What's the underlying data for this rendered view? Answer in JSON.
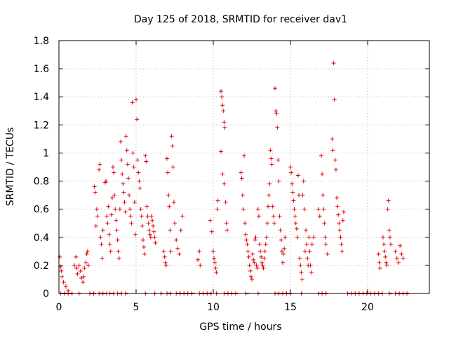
{
  "chart_data": {
    "type": "scatter",
    "title": "Day 125 of 2018, SRMTID for receiver dav1",
    "xlabel": "GPS time / hours",
    "ylabel": "SRMTID / TECUs",
    "xlim": [
      0,
      24
    ],
    "ylim": [
      0,
      1.8
    ],
    "xticks": [
      0,
      5,
      10,
      15,
      20
    ],
    "yticks": [
      0,
      0.2,
      0.4,
      0.6,
      0.8,
      1,
      1.2,
      1.4,
      1.6,
      1.8
    ],
    "xtick_labels": [
      "0",
      "5",
      "10",
      "15",
      "20"
    ],
    "ytick_labels": [
      "0",
      "0.2",
      "0.4",
      "0.6",
      "0.8",
      "1",
      "1.2",
      "1.4",
      "1.6",
      "1.8"
    ],
    "grid": true,
    "marker": "+",
    "color": "#e00000",
    "series": [
      {
        "name": "SRMTID",
        "points": [
          [
            0.05,
            0.26
          ],
          [
            0.1,
            0.19
          ],
          [
            0.15,
            0.16
          ],
          [
            0.2,
            0.12
          ],
          [
            0.3,
            0.08
          ],
          [
            0.45,
            0.05
          ],
          [
            0.6,
            0.02
          ],
          [
            1.0,
            0.2
          ],
          [
            1.1,
            0.26
          ],
          [
            1.15,
            0.18
          ],
          [
            1.2,
            0.14
          ],
          [
            1.3,
            0.2
          ],
          [
            1.4,
            0.16
          ],
          [
            1.45,
            0.11
          ],
          [
            1.55,
            0.08
          ],
          [
            1.6,
            0.12
          ],
          [
            1.65,
            0.18
          ],
          [
            1.75,
            0.22
          ],
          [
            1.8,
            0.28
          ],
          [
            1.85,
            0.3
          ],
          [
            1.9,
            0.2
          ],
          [
            2.3,
            0.76
          ],
          [
            2.35,
            0.72
          ],
          [
            2.4,
            0.48
          ],
          [
            2.45,
            0.6
          ],
          [
            2.5,
            0.55
          ],
          [
            2.6,
            0.88
          ],
          [
            2.65,
            0.92
          ],
          [
            2.7,
            0.4
          ],
          [
            2.75,
            0.35
          ],
          [
            2.8,
            0.25
          ],
          [
            2.85,
            0.45
          ],
          [
            3.0,
            0.79
          ],
          [
            3.05,
            0.8
          ],
          [
            3.1,
            0.55
          ],
          [
            3.15,
            0.5
          ],
          [
            3.2,
            0.62
          ],
          [
            3.25,
            0.42
          ],
          [
            3.3,
            0.35
          ],
          [
            3.35,
            0.3
          ],
          [
            3.4,
            0.56
          ],
          [
            3.45,
            0.68
          ],
          [
            3.5,
            0.9
          ],
          [
            3.55,
            0.86
          ],
          [
            3.6,
            0.7
          ],
          [
            3.65,
            0.6
          ],
          [
            3.7,
            0.52
          ],
          [
            3.75,
            0.45
          ],
          [
            3.8,
            0.38
          ],
          [
            3.85,
            0.3
          ],
          [
            3.9,
            0.25
          ],
          [
            3.95,
            0.6
          ],
          [
            4.0,
            1.08
          ],
          [
            4.05,
            0.95
          ],
          [
            4.1,
            0.85
          ],
          [
            4.15,
            0.78
          ],
          [
            4.2,
            0.72
          ],
          [
            4.25,
            0.65
          ],
          [
            4.3,
            0.58
          ],
          [
            4.35,
            1.12
          ],
          [
            4.4,
            1.02
          ],
          [
            4.45,
            0.92
          ],
          [
            4.5,
            0.82
          ],
          [
            4.55,
            0.7
          ],
          [
            4.6,
            0.6
          ],
          [
            4.65,
            0.55
          ],
          [
            4.7,
            0.5
          ],
          [
            4.75,
            1.36
          ],
          [
            4.8,
            1.0
          ],
          [
            4.85,
            0.9
          ],
          [
            4.9,
            0.65
          ],
          [
            4.95,
            0.42
          ],
          [
            5.0,
            1.38
          ],
          [
            5.05,
            1.24
          ],
          [
            5.1,
            0.95
          ],
          [
            5.15,
            0.86
          ],
          [
            5.2,
            0.8
          ],
          [
            5.25,
            0.75
          ],
          [
            5.3,
            0.6
          ],
          [
            5.35,
            0.55
          ],
          [
            5.4,
            0.48
          ],
          [
            5.45,
            0.38
          ],
          [
            5.5,
            0.33
          ],
          [
            5.55,
            0.28
          ],
          [
            5.6,
            0.98
          ],
          [
            5.65,
            0.94
          ],
          [
            5.7,
            0.62
          ],
          [
            5.75,
            0.55
          ],
          [
            5.8,
            0.5
          ],
          [
            5.85,
            0.45
          ],
          [
            5.9,
            0.42
          ],
          [
            5.95,
            0.4
          ],
          [
            6.0,
            0.55
          ],
          [
            6.05,
            0.52
          ],
          [
            6.1,
            0.48
          ],
          [
            6.15,
            0.44
          ],
          [
            6.2,
            0.4
          ],
          [
            6.25,
            0.36
          ],
          [
            6.8,
            0.3
          ],
          [
            6.85,
            0.26
          ],
          [
            6.9,
            0.22
          ],
          [
            6.95,
            0.2
          ],
          [
            7.0,
            0.96
          ],
          [
            7.05,
            0.86
          ],
          [
            7.1,
            0.7
          ],
          [
            7.15,
            0.62
          ],
          [
            7.2,
            0.45
          ],
          [
            7.25,
            0.3
          ],
          [
            7.3,
            1.12
          ],
          [
            7.35,
            1.05
          ],
          [
            7.4,
            0.9
          ],
          [
            7.45,
            0.65
          ],
          [
            7.5,
            0.5
          ],
          [
            7.6,
            0.38
          ],
          [
            7.7,
            0.32
          ],
          [
            7.8,
            0.28
          ],
          [
            7.9,
            0.45
          ],
          [
            8.0,
            0.55
          ],
          [
            9.0,
            0.24
          ],
          [
            9.1,
            0.3
          ],
          [
            9.15,
            0.2
          ],
          [
            9.8,
            0.52
          ],
          [
            9.9,
            0.44
          ],
          [
            10.0,
            0.3
          ],
          [
            10.05,
            0.25
          ],
          [
            10.1,
            0.22
          ],
          [
            10.15,
            0.18
          ],
          [
            10.2,
            0.15
          ],
          [
            10.25,
            0.6
          ],
          [
            10.3,
            0.66
          ],
          [
            10.5,
            1.44
          ],
          [
            10.55,
            1.4
          ],
          [
            10.6,
            1.34
          ],
          [
            10.65,
            1.3
          ],
          [
            10.7,
            1.22
          ],
          [
            10.75,
            1.18
          ],
          [
            10.5,
            1.01
          ],
          [
            10.6,
            0.85
          ],
          [
            10.7,
            0.78
          ],
          [
            10.8,
            0.65
          ],
          [
            10.85,
            0.5
          ],
          [
            10.9,
            0.45
          ],
          [
            11.8,
            0.86
          ],
          [
            11.85,
            0.82
          ],
          [
            11.9,
            0.7
          ],
          [
            11.95,
            0.6
          ],
          [
            12.0,
            0.98
          ],
          [
            12.05,
            0.5
          ],
          [
            12.1,
            0.42
          ],
          [
            12.15,
            0.38
          ],
          [
            12.2,
            0.35
          ],
          [
            12.25,
            0.3
          ],
          [
            12.3,
            0.26
          ],
          [
            12.35,
            0.2
          ],
          [
            12.4,
            0.16
          ],
          [
            12.45,
            0.12
          ],
          [
            12.5,
            0.1
          ],
          [
            12.55,
            0.28
          ],
          [
            12.6,
            0.24
          ],
          [
            12.65,
            0.22
          ],
          [
            12.7,
            0.38
          ],
          [
            12.75,
            0.4
          ],
          [
            12.8,
            0.2
          ],
          [
            12.85,
            0.18
          ],
          [
            12.9,
            0.6
          ],
          [
            12.95,
            0.55
          ],
          [
            13.0,
            0.35
          ],
          [
            13.05,
            0.3
          ],
          [
            13.1,
            0.26
          ],
          [
            13.15,
            0.22
          ],
          [
            13.2,
            0.2
          ],
          [
            13.25,
            0.18
          ],
          [
            13.3,
            0.25
          ],
          [
            13.35,
            0.3
          ],
          [
            13.4,
            0.35
          ],
          [
            13.45,
            0.4
          ],
          [
            13.5,
            0.5
          ],
          [
            13.55,
            0.62
          ],
          [
            13.6,
            0.7
          ],
          [
            13.65,
            0.78
          ],
          [
            13.7,
            1.02
          ],
          [
            13.75,
            0.96
          ],
          [
            13.8,
            0.92
          ],
          [
            13.85,
            0.62
          ],
          [
            13.9,
            0.55
          ],
          [
            13.95,
            0.5
          ],
          [
            14.0,
            1.46
          ],
          [
            14.05,
            1.3
          ],
          [
            14.1,
            1.28
          ],
          [
            14.15,
            1.18
          ],
          [
            14.2,
            0.95
          ],
          [
            14.25,
            0.8
          ],
          [
            14.3,
            0.55
          ],
          [
            14.35,
            0.45
          ],
          [
            14.4,
            0.38
          ],
          [
            14.45,
            0.3
          ],
          [
            14.5,
            0.22
          ],
          [
            14.55,
            0.28
          ],
          [
            14.6,
            0.32
          ],
          [
            14.65,
            0.4
          ],
          [
            15.0,
            0.9
          ],
          [
            15.05,
            0.86
          ],
          [
            15.1,
            0.78
          ],
          [
            15.15,
            0.72
          ],
          [
            15.2,
            0.66
          ],
          [
            15.25,
            0.6
          ],
          [
            15.3,
            0.55
          ],
          [
            15.35,
            0.5
          ],
          [
            15.4,
            0.46
          ],
          [
            15.45,
            0.4
          ],
          [
            15.5,
            0.84
          ],
          [
            15.55,
            0.7
          ],
          [
            15.6,
            0.25
          ],
          [
            15.65,
            0.2
          ],
          [
            15.7,
            0.15
          ],
          [
            15.75,
            0.1
          ],
          [
            15.8,
            0.7
          ],
          [
            15.85,
            0.8
          ],
          [
            15.9,
            0.6
          ],
          [
            15.95,
            0.3
          ],
          [
            16.0,
            0.45
          ],
          [
            16.05,
            0.35
          ],
          [
            16.1,
            0.25
          ],
          [
            16.15,
            0.2
          ],
          [
            16.2,
            0.4
          ],
          [
            16.25,
            0.3
          ],
          [
            16.3,
            0.2
          ],
          [
            16.35,
            0.15
          ],
          [
            16.4,
            0.35
          ],
          [
            16.5,
            0.4
          ],
          [
            16.8,
            0.6
          ],
          [
            16.9,
            0.55
          ],
          [
            17.0,
            0.98
          ],
          [
            17.05,
            0.85
          ],
          [
            17.1,
            0.7
          ],
          [
            17.15,
            0.6
          ],
          [
            17.2,
            0.5
          ],
          [
            17.25,
            0.4
          ],
          [
            17.3,
            0.35
          ],
          [
            17.4,
            0.28
          ],
          [
            17.7,
            1.1
          ],
          [
            17.75,
            1.02
          ],
          [
            17.8,
            1.64
          ],
          [
            17.85,
            1.38
          ],
          [
            17.9,
            0.95
          ],
          [
            17.95,
            0.88
          ],
          [
            18.0,
            0.68
          ],
          [
            18.05,
            0.62
          ],
          [
            18.1,
            0.56
          ],
          [
            18.15,
            0.5
          ],
          [
            18.2,
            0.45
          ],
          [
            18.25,
            0.4
          ],
          [
            18.3,
            0.35
          ],
          [
            18.35,
            0.3
          ],
          [
            18.4,
            0.52
          ],
          [
            18.45,
            0.58
          ],
          [
            20.7,
            0.28
          ],
          [
            20.75,
            0.22
          ],
          [
            20.8,
            0.18
          ],
          [
            21.0,
            0.4
          ],
          [
            21.05,
            0.35
          ],
          [
            21.1,
            0.3
          ],
          [
            21.15,
            0.26
          ],
          [
            21.2,
            0.22
          ],
          [
            21.25,
            0.2
          ],
          [
            21.3,
            0.6
          ],
          [
            21.35,
            0.66
          ],
          [
            21.4,
            0.45
          ],
          [
            21.45,
            0.4
          ],
          [
            21.5,
            0.35
          ],
          [
            21.8,
            0.3
          ],
          [
            21.9,
            0.25
          ],
          [
            22.0,
            0.22
          ],
          [
            22.1,
            0.34
          ],
          [
            22.2,
            0.28
          ],
          [
            22.3,
            0.25
          ]
        ],
        "zero_runs": [
          [
            0.1,
            0.9
          ],
          [
            1.3,
            1.4
          ],
          [
            2.0,
            2.4
          ],
          [
            2.6,
            3.1
          ],
          [
            3.3,
            3.6
          ],
          [
            3.8,
            4.1
          ],
          [
            4.3,
            4.5
          ],
          [
            5.6,
            5.7
          ],
          [
            6.2,
            6.3
          ],
          [
            6.6,
            6.75
          ],
          [
            7.0,
            7.3
          ],
          [
            7.6,
            8.8
          ],
          [
            9.1,
            9.9
          ],
          [
            10.2,
            10.3
          ],
          [
            10.7,
            11.6
          ],
          [
            12.1,
            12.3
          ],
          [
            12.9,
            13.0
          ],
          [
            14.0,
            15.1
          ],
          [
            15.7,
            15.8
          ],
          [
            16.8,
            17.4
          ],
          [
            18.7,
            21.0
          ],
          [
            21.4,
            21.6
          ],
          [
            21.8,
            22.7
          ]
        ]
      }
    ]
  }
}
